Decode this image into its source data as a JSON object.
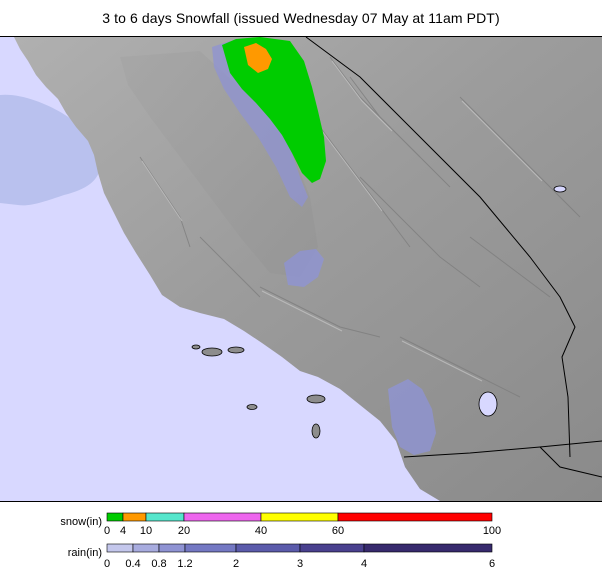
{
  "title": "3 to 6 days Snowfall (issued Wednesday 07 May at 11am PDT)",
  "legend": {
    "snow": {
      "label": "snow(in)",
      "ticks": [
        "0",
        "4",
        "10",
        "20",
        "40",
        "60",
        "100"
      ],
      "colors": [
        "#00cc00",
        "#ff9900",
        "#55e6cc",
        "#ee66ee",
        "#ffff00",
        "#ff0000"
      ]
    },
    "rain": {
      "label": "rain(in)",
      "ticks": [
        "0",
        "0.4",
        "0.8",
        "1.2",
        "2",
        "3",
        "4",
        "6"
      ],
      "colors": [
        "#c4c7ec",
        "#a8acdf",
        "#8f93d3",
        "#7478c3",
        "#5b5bab",
        "#49408e",
        "#372a6d"
      ]
    }
  },
  "map": {
    "ocean_color": "#d8d8ff",
    "land_color": "#9a9a9a",
    "offshore_rain_color": "#b9c1ee"
  }
}
